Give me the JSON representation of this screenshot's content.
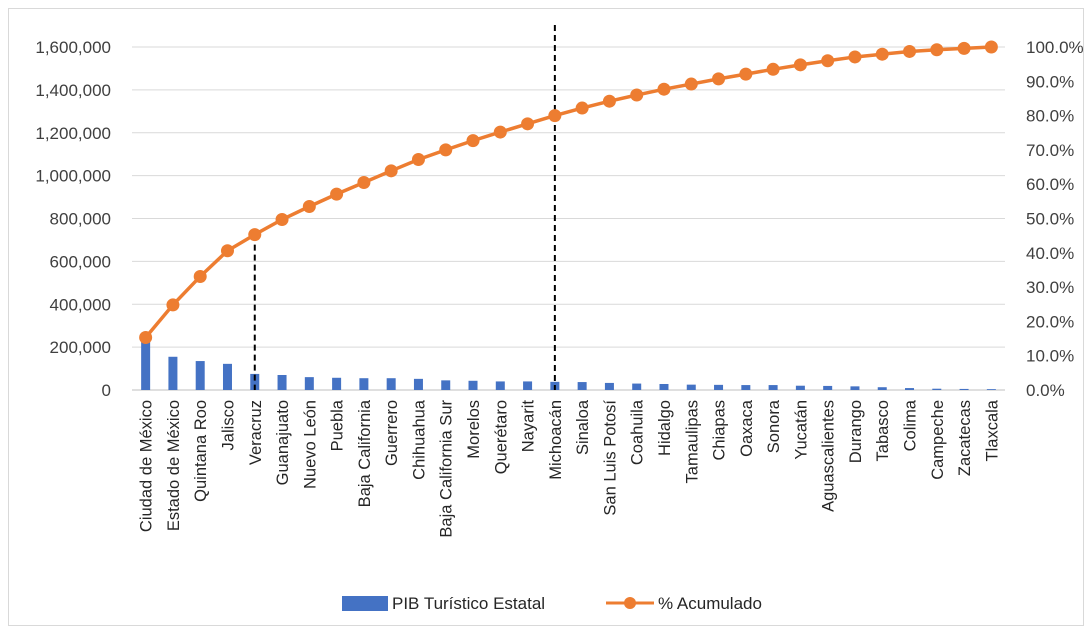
{
  "chart_data": {
    "type": "bar",
    "categories": [
      "Ciudad de México",
      "Estado de México",
      "Quintana Roo",
      "Jalisco",
      "Veracruz",
      "Guanajuato",
      "Nuevo León",
      "Puebla",
      "Baja California",
      "Guerrero",
      "Chihuahua",
      "Baja California Sur",
      "Morelos",
      "Querétaro",
      "Nayarit",
      "Michoacán",
      "Sinaloa",
      "San Luis Potosí",
      "Coahuila",
      "Hidalgo",
      "Tamaulipas",
      "Chiapas",
      "Oaxaca",
      "Sonora",
      "Yucatán",
      "Aguascalientes",
      "Durango",
      "Tabasco",
      "Colima",
      "Campeche",
      "Zacatecas",
      "Tlaxcala"
    ],
    "series": [
      {
        "name": "PIB Turístico Estatal",
        "type": "bar",
        "axis": "left",
        "color": "#4472C4",
        "values": [
          245000,
          155000,
          135000,
          122000,
          75000,
          70000,
          60000,
          57000,
          55000,
          55000,
          52000,
          45000,
          43000,
          40000,
          40000,
          38000,
          37000,
          33000,
          30000,
          28000,
          25000,
          24000,
          23000,
          23000,
          20000,
          19000,
          17000,
          13000,
          9000,
          6000,
          5000,
          4000
        ]
      },
      {
        "name": "% Acumulado",
        "type": "line",
        "axis": "right",
        "color": "#ED7D31",
        "values": [
          15.3,
          24.8,
          33.1,
          40.6,
          45.3,
          49.7,
          53.5,
          57.1,
          60.5,
          63.9,
          67.2,
          70.0,
          72.7,
          75.2,
          77.6,
          80.0,
          82.2,
          84.2,
          86.0,
          87.7,
          89.2,
          90.7,
          92.1,
          93.5,
          94.8,
          96.0,
          97.1,
          97.9,
          98.7,
          99.2,
          99.6,
          100.0
        ]
      }
    ],
    "y_left": {
      "ylim": [
        0,
        1600000
      ],
      "step": 200000
    },
    "y_right": {
      "ylim": [
        0,
        100
      ],
      "step": 10
    },
    "ticks_left": [
      "0",
      "200,000",
      "400,000",
      "600,000",
      "800,000",
      "1,000,000",
      "1,200,000",
      "1,400,000",
      "1,600,000"
    ],
    "ticks_right": [
      "0.0%",
      "10.0%",
      "20.0%",
      "30.0%",
      "40.0%",
      "50.0%",
      "60.0%",
      "70.0%",
      "80.0%",
      "90.0%",
      "100.0%"
    ],
    "reference_lines": [
      {
        "category": "Veracruz",
        "style": "dashed"
      },
      {
        "category": "Michoacán",
        "style": "dashed"
      }
    ],
    "grid": true,
    "legend_position": "bottom",
    "legend": {
      "bar_label": "PIB Turístico Estatal",
      "line_label": "% Acumulado"
    }
  }
}
